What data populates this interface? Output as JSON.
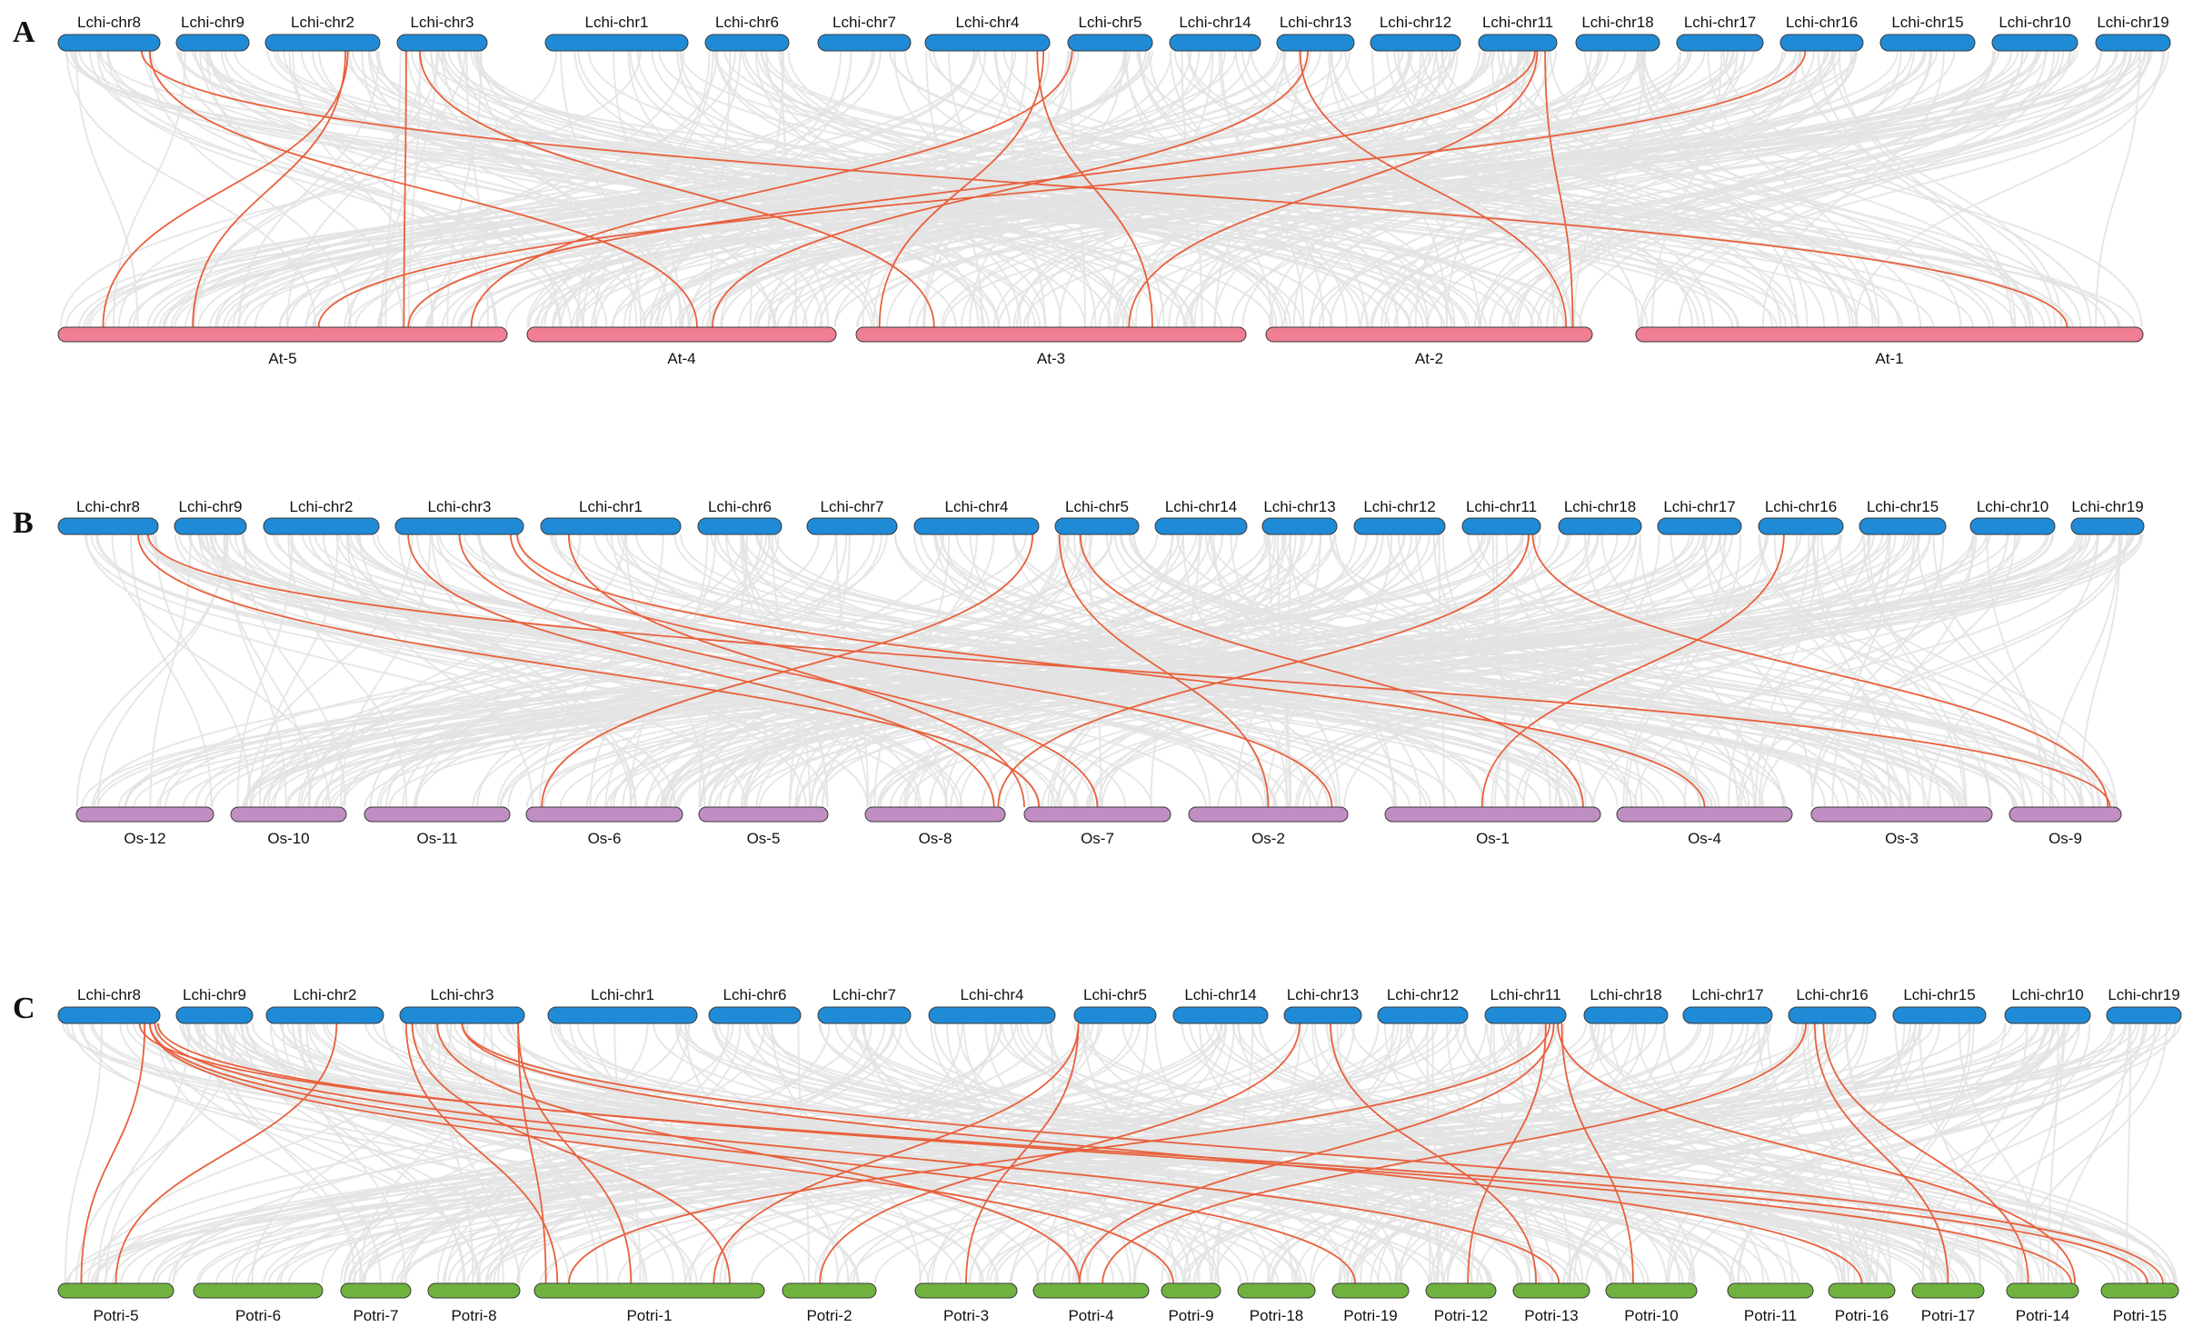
{
  "colors": {
    "lchi": "#1f8bd6",
    "at": "#f07f94",
    "os": "#c08ec3",
    "potri": "#6fb33e",
    "background_link": "#e3e3e3",
    "highlight_link": "#e8603c"
  },
  "panels": [
    {
      "id": "A",
      "letter": "A",
      "top_species": "Lchi",
      "bottom_species": "At",
      "top_labels": [
        "Lchi-chr8",
        "Lchi-chr9",
        "Lchi-chr2",
        "Lchi-chr3",
        "Lchi-chr1",
        "Lchi-chr6",
        "Lchi-chr7",
        "Lchi-chr4",
        "Lchi-chr5",
        "Lchi-chr14",
        "Lchi-chr13",
        "Lchi-chr12",
        "Lchi-chr11",
        "Lchi-chr18",
        "Lchi-chr17",
        "Lchi-chr16",
        "Lchi-chr15",
        "Lchi-chr10",
        "Lchi-chr19"
      ],
      "bottom_labels": [
        "At-5",
        "At-4",
        "At-3",
        "At-2",
        "At-1"
      ]
    },
    {
      "id": "B",
      "letter": "B",
      "top_species": "Lchi",
      "bottom_species": "Os",
      "top_labels": [
        "Lchi-chr8",
        "Lchi-chr9",
        "Lchi-chr2",
        "Lchi-chr3",
        "Lchi-chr1",
        "Lchi-chr6",
        "Lchi-chr7",
        "Lchi-chr4",
        "Lchi-chr5",
        "Lchi-chr14",
        "Lchi-chr13",
        "Lchi-chr12",
        "Lchi-chr11",
        "Lchi-chr18",
        "Lchi-chr17",
        "Lchi-chr16",
        "Lchi-chr15",
        "Lchi-chr10",
        "Lchi-chr19"
      ],
      "bottom_labels": [
        "Os-12",
        "Os-10",
        "Os-11",
        "Os-6",
        "Os-5",
        "Os-8",
        "Os-7",
        "Os-2",
        "Os-1",
        "Os-4",
        "Os-3",
        "Os-9"
      ]
    },
    {
      "id": "C",
      "letter": "C",
      "top_species": "Lchi",
      "bottom_species": "Potri",
      "top_labels": [
        "Lchi-chr8",
        "Lchi-chr9",
        "Lchi-chr2",
        "Lchi-chr3",
        "Lchi-chr1",
        "Lchi-chr6",
        "Lchi-chr7",
        "Lchi-chr4",
        "Lchi-chr5",
        "Lchi-chr14",
        "Lchi-chr13",
        "Lchi-chr12",
        "Lchi-chr11",
        "Lchi-chr18",
        "Lchi-chr17",
        "Lchi-chr16",
        "Lchi-chr15",
        "Lchi-chr10",
        "Lchi-chr19"
      ],
      "bottom_labels": [
        "Potri-5",
        "Potri-6",
        "Potri-7",
        "Potri-8",
        "Potri-1",
        "Potri-2",
        "Potri-3",
        "Potri-4",
        "Potri-9",
        "Potri-18",
        "Potri-19",
        "Potri-12",
        "Potri-13",
        "Potri-10",
        "Potri-11",
        "Potri-16",
        "Potri-17",
        "Potri-14",
        "Potri-15"
      ]
    }
  ]
}
